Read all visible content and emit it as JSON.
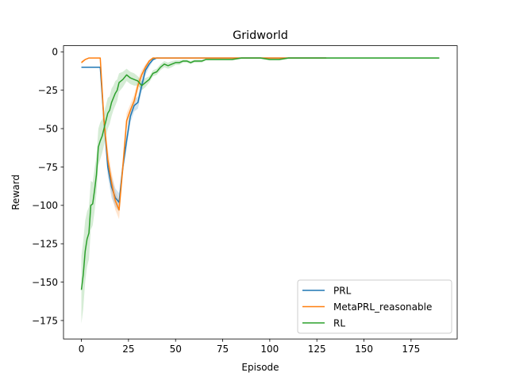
{
  "chart_data": {
    "type": "line",
    "title": "Gridworld",
    "xlabel": "Episode",
    "ylabel": "Reward",
    "xlim": [
      -9.5,
      199.5
    ],
    "ylim": [
      -187,
      4
    ],
    "xticks": [
      0,
      25,
      50,
      75,
      100,
      125,
      150,
      175
    ],
    "yticks": [
      0,
      -25,
      -50,
      -75,
      -100,
      -125,
      -150,
      -175
    ],
    "grid": false,
    "legend_position": "lower right",
    "series": [
      {
        "name": "PRL",
        "color": "#1f77b4",
        "x": [
          0,
          2,
          4,
          6,
          8,
          10,
          12,
          14,
          16,
          18,
          20,
          22,
          24,
          26,
          28,
          30,
          32,
          34,
          36,
          38,
          40,
          45,
          50,
          60,
          70,
          80,
          90,
          100,
          110,
          120,
          130
        ],
        "y": [
          -10,
          -10,
          -10,
          -10,
          -10,
          -10,
          -45,
          -75,
          -88,
          -95,
          -98,
          -75,
          -58,
          -42,
          -35,
          -33,
          -22,
          -12,
          -8,
          -5,
          -4,
          -4,
          -4,
          -4,
          -4,
          -4,
          -4,
          -4,
          -4,
          -4,
          -4
        ],
        "band": [
          0,
          0,
          0,
          0,
          0,
          0,
          4,
          6,
          7,
          6,
          6,
          5,
          5,
          4,
          4,
          4,
          4,
          3,
          2,
          1,
          0.5,
          0,
          0,
          0,
          0,
          0,
          0,
          0,
          0,
          0,
          0
        ]
      },
      {
        "name": "MetaPRL_reasonable",
        "color": "#ff7f0e",
        "x": [
          0,
          2,
          4,
          6,
          8,
          10,
          12,
          14,
          16,
          18,
          20,
          22,
          24,
          26,
          28,
          30,
          32,
          34,
          36,
          38,
          40,
          45,
          50,
          60,
          70,
          80,
          90,
          100,
          110,
          120,
          130
        ],
        "y": [
          -7,
          -5,
          -4,
          -4,
          -4,
          -4,
          -45,
          -70,
          -85,
          -97,
          -103,
          -75,
          -45,
          -38,
          -32,
          -22,
          -15,
          -10,
          -6,
          -4,
          -4,
          -4,
          -4,
          -4,
          -4,
          -4,
          -4,
          -4,
          -4,
          -4,
          -4
        ],
        "band": [
          1,
          0.5,
          0,
          0,
          0,
          0,
          5,
          7,
          7,
          6,
          6,
          6,
          5,
          4,
          4,
          4,
          3,
          2,
          1,
          0.5,
          0,
          0,
          0,
          0,
          0,
          0,
          0,
          0,
          0,
          0,
          0
        ]
      },
      {
        "name": "RL",
        "color": "#2ca02c",
        "x": [
          0,
          1,
          2,
          3,
          4,
          5,
          6,
          7,
          8,
          9,
          10,
          11,
          12,
          13,
          14,
          15,
          16,
          17,
          18,
          19,
          20,
          22,
          24,
          26,
          28,
          30,
          32,
          34,
          36,
          38,
          40,
          42,
          44,
          46,
          48,
          50,
          52,
          54,
          56,
          58,
          60,
          62,
          64,
          66,
          68,
          70,
          75,
          80,
          85,
          90,
          95,
          100,
          105,
          110,
          115,
          120,
          125,
          130,
          140,
          150,
          160,
          170,
          180,
          190
        ],
        "y": [
          -155,
          -145,
          -130,
          -122,
          -118,
          -100,
          -99,
          -90,
          -80,
          -62,
          -58,
          -55,
          -50,
          -45,
          -40,
          -38,
          -33,
          -30,
          -27,
          -25,
          -20,
          -18,
          -15,
          -17,
          -18,
          -19,
          -22,
          -20,
          -18,
          -14,
          -13,
          -10,
          -8,
          -9,
          -8,
          -7,
          -7,
          -6,
          -6,
          -7,
          -6,
          -6,
          -6,
          -5,
          -5,
          -5,
          -5,
          -5,
          -4,
          -4,
          -4,
          -5,
          -5,
          -4,
          -4,
          -4,
          -4,
          -4,
          -4,
          -4,
          -4,
          -4,
          -4,
          -4
        ],
        "band": [
          22,
          22,
          20,
          18,
          17,
          16,
          14,
          14,
          12,
          12,
          12,
          11,
          11,
          10,
          10,
          9,
          9,
          8,
          8,
          7,
          6,
          5,
          4,
          4,
          4,
          3,
          3,
          3,
          2,
          2,
          2,
          2,
          2,
          2,
          2,
          1.5,
          1.5,
          1,
          1,
          1,
          1,
          1,
          1,
          0.5,
          0.5,
          0.5,
          0.5,
          0.5,
          0.5,
          0.5,
          0.5,
          0.5,
          0.5,
          0.5,
          0.5,
          0.5,
          0.5,
          0.5,
          0.5,
          0.5,
          0.5,
          0.5,
          0.5,
          0.5
        ]
      }
    ]
  }
}
